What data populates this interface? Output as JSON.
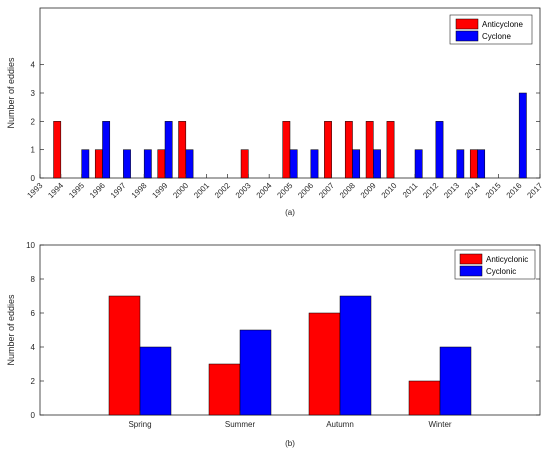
{
  "chart_data": [
    {
      "type": "bar",
      "caption": "(a)",
      "categories": [
        "1993",
        "1994",
        "1995",
        "1996",
        "1997",
        "1998",
        "1999",
        "2000",
        "2001",
        "2002",
        "2003",
        "2004",
        "2005",
        "2006",
        "2007",
        "2008",
        "2009",
        "2010",
        "2011",
        "2012",
        "2013",
        "2014",
        "2015",
        "2016",
        "2017"
      ],
      "series": [
        {
          "name": "Anticyclone",
          "color": "#ff0000",
          "values": [
            0,
            2,
            0,
            1,
            0,
            0,
            1,
            2,
            0,
            0,
            1,
            0,
            2,
            0,
            2,
            2,
            2,
            2,
            0,
            0,
            0,
            1,
            0,
            0,
            0
          ]
        },
        {
          "name": "Cyclone",
          "color": "#0000ff",
          "values": [
            0,
            0,
            1,
            2,
            1,
            1,
            2,
            1,
            0,
            0,
            0,
            0,
            1,
            1,
            0,
            1,
            1,
            0,
            1,
            2,
            1,
            1,
            0,
            3,
            0
          ]
        }
      ],
      "xlabel": "",
      "ylabel": "Number of eddies",
      "ylim": [
        0,
        6
      ],
      "yticks": [
        0,
        1,
        2,
        3,
        4
      ],
      "grid": false,
      "legend": "top-right"
    },
    {
      "type": "bar",
      "caption": "(b)",
      "categories": [
        "Spring",
        "Summer",
        "Autumn",
        "Winter"
      ],
      "series": [
        {
          "name": "Anticyclonic",
          "color": "#ff0000",
          "values": [
            7,
            3,
            6,
            2
          ]
        },
        {
          "name": "Cyclonic",
          "color": "#0000ff",
          "values": [
            4,
            5,
            7,
            4
          ]
        }
      ],
      "xlabel": "",
      "ylabel": "Number of eddies",
      "ylim": [
        0,
        10
      ],
      "yticks": [
        0,
        2,
        4,
        6,
        8,
        10
      ],
      "grid": false,
      "legend": "top-right"
    }
  ]
}
